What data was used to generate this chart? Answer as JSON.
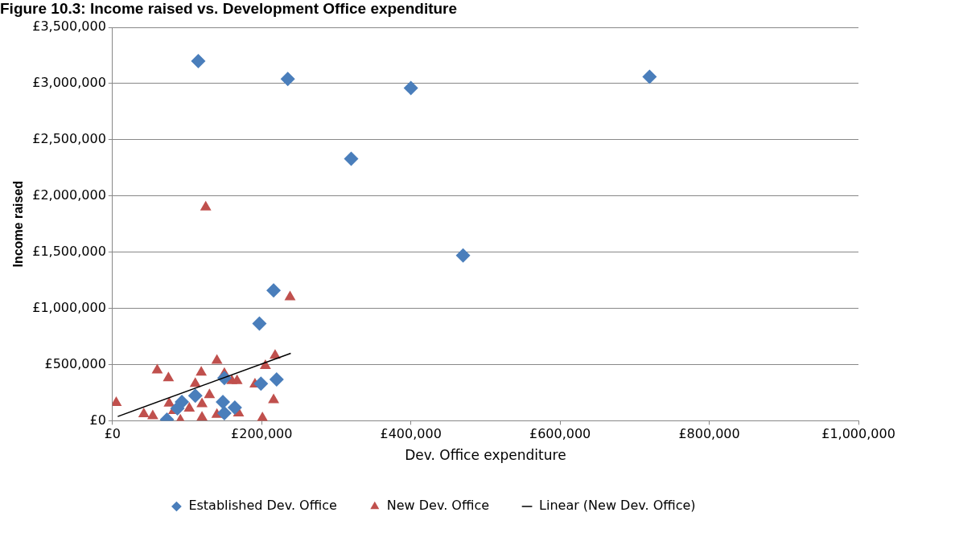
{
  "chart_data": {
    "type": "scatter",
    "title": "Figure 10.3: Income raised vs. Development Office expenditure",
    "xlabel": "Dev. Office expenditure",
    "ylabel": "Income raised",
    "xlim": [
      0,
      1000000
    ],
    "xticks": [
      {
        "value": 0,
        "label": "£0"
      },
      {
        "value": 200000,
        "label": "£200,000"
      },
      {
        "value": 400000,
        "label": "£400,000"
      },
      {
        "value": 600000,
        "label": "£600,000"
      },
      {
        "value": 800000,
        "label": "£800,000"
      },
      {
        "value": 1000000,
        "label": "£1,000,000"
      }
    ],
    "ylim": [
      0,
      3500000
    ],
    "yticks": [
      {
        "value": 0,
        "label": "£0"
      },
      {
        "value": 500000,
        "label": "£500,000"
      },
      {
        "value": 1000000,
        "label": "£1,000,000"
      },
      {
        "value": 1500000,
        "label": "£1,500,000"
      },
      {
        "value": 2000000,
        "label": "£2,000,000"
      },
      {
        "value": 2500000,
        "label": "£2,500,000"
      },
      {
        "value": 3000000,
        "label": "£3,000,000"
      },
      {
        "value": 3500000,
        "label": "£3,500,000"
      }
    ],
    "grid": "y",
    "legend": "bottom",
    "series": [
      {
        "name": "Established Dev. Office",
        "color": "#4a7ebb",
        "marker": "diamond",
        "x": [
          115000,
          235000,
          320000,
          400000,
          470000,
          720000,
          216000,
          197000,
          73000,
          93000,
          87000,
          111000,
          148000,
          150000,
          164000,
          150000,
          199000,
          220000
        ],
        "values": [
          3200000,
          3040000,
          2330000,
          2960000,
          1470000,
          3060000,
          1160000,
          865000,
          10000,
          168000,
          110000,
          222000,
          168000,
          68000,
          118000,
          380000,
          330000,
          368000
        ]
      },
      {
        "name": "New Dev. Office",
        "color": "#c0504d",
        "marker": "triangle",
        "x": [
          125000,
          238000,
          218000,
          140000,
          5000,
          42000,
          54000,
          60000,
          75000,
          76000,
          82000,
          91000,
          103000,
          111000,
          119000,
          120000,
          130000,
          140000,
          150000,
          160000,
          167000,
          169000,
          191000,
          201000,
          205000,
          216000,
          120000
        ],
        "values": [
          1900000,
          1100000,
          580000,
          535000,
          160000,
          60000,
          42000,
          450000,
          380000,
          155000,
          88000,
          5000,
          110000,
          330000,
          430000,
          150000,
          230000,
          55000,
          420000,
          355000,
          355000,
          68000,
          325000,
          25000,
          490000,
          185000,
          30000
        ]
      },
      {
        "name": "Linear (New Dev. Office)",
        "type": "line",
        "color": "#000000",
        "marker": "none",
        "x": [
          7000,
          239000
        ],
        "values": [
          38000,
          600000
        ]
      }
    ]
  }
}
